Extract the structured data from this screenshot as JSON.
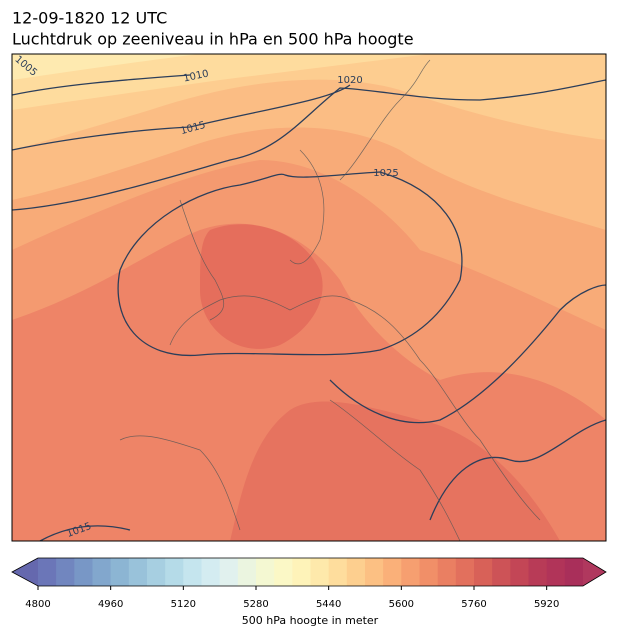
{
  "header": {
    "title_line1": "12-09-1820 12 UTC",
    "title_line2": "Luchtdruk op zeeniveau in hPa en 500 hPa hoogte"
  },
  "map": {
    "contour_labels": [
      "1005",
      "1010",
      "1015",
      "1020",
      "1025",
      "1015"
    ]
  },
  "colorbar": {
    "range": [
      4800,
      6000
    ],
    "ticks": [
      4800,
      4960,
      5120,
      5280,
      5440,
      5600,
      5760,
      5920
    ],
    "label": "500 hPa hoogte in meter",
    "colors": [
      "#6b76b8",
      "#7186bf",
      "#7897c6",
      "#82a7cd",
      "#8cb5d3",
      "#99c2da",
      "#a7cfe1",
      "#b5dbe8",
      "#c5e5ee",
      "#d4ecf1",
      "#e1f1ee",
      "#ebf5e0",
      "#f4f8d2",
      "#fbf8c6",
      "#fef3b9",
      "#fee9ab",
      "#fedd9d",
      "#fdcf8f",
      "#fcc083",
      "#fab079",
      "#f69f70",
      "#f18f68",
      "#ea7f62",
      "#e2705d",
      "#d86158",
      "#cd5357",
      "#c34656",
      "#b83b57",
      "#b13459",
      "#a92f5a"
    ],
    "under_color": "#6568ae",
    "over_color": "#b0385e"
  }
}
